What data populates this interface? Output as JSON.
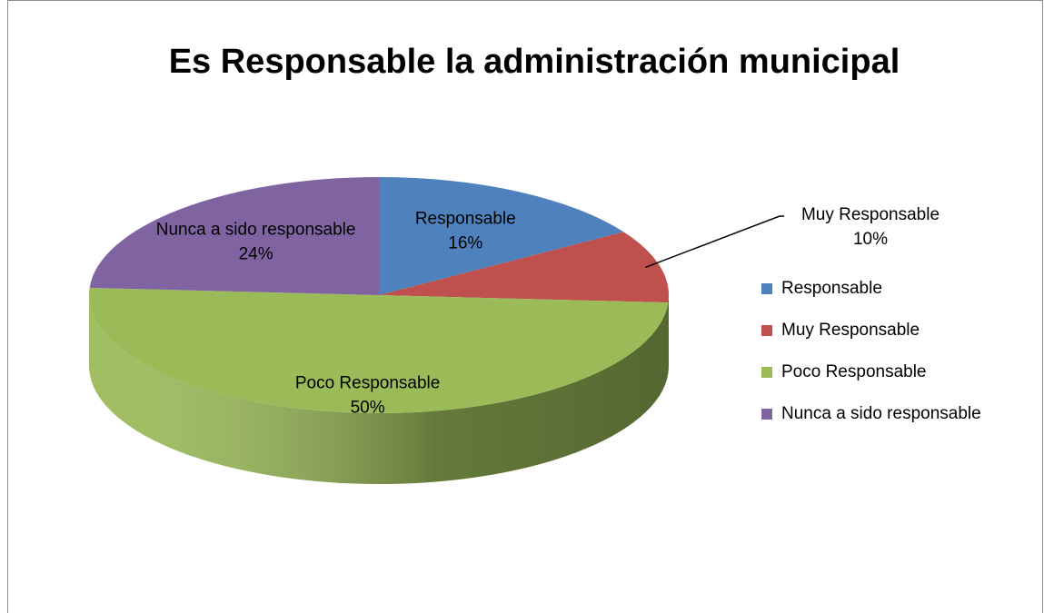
{
  "chart_data": {
    "type": "pie",
    "title": "Es Responsable  la administración municipal",
    "categories": [
      "Responsable",
      "Muy Responsable",
      "Poco Responsable",
      "Nunca a sido responsable"
    ],
    "values": [
      16,
      10,
      50,
      24
    ],
    "value_labels": [
      "16%",
      "10%",
      "50%",
      "24%"
    ],
    "colors": [
      "#4f81bd",
      "#c0504d",
      "#9bbb59",
      "#8064a2"
    ],
    "legend": "right"
  }
}
